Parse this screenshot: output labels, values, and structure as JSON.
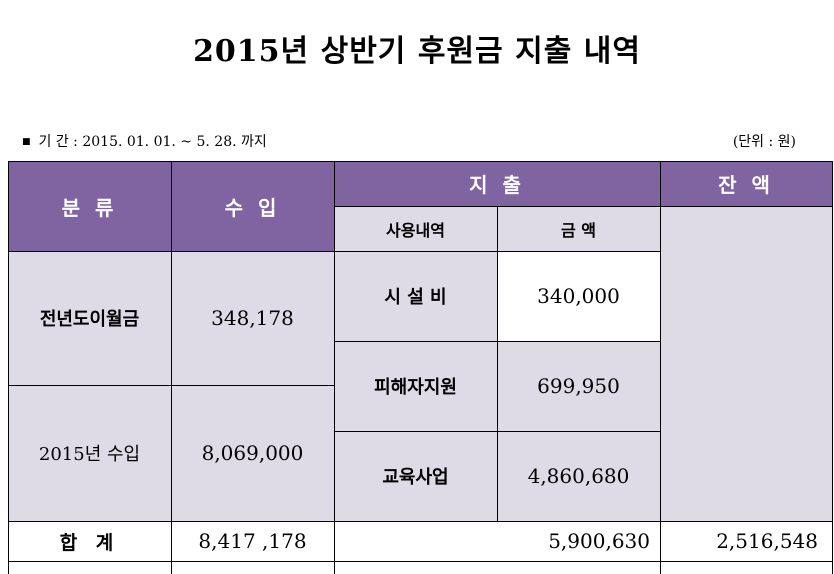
{
  "title": "2015년 상반기 후원금 지출 내역",
  "period": {
    "bullet": "■",
    "text": "기 간 : 2015. 01. 01. ~ 5. 28. 까지"
  },
  "unit": "(단위 : 원)",
  "table": {
    "headers": {
      "category": "분 류",
      "income": "수 입",
      "expense": "지 출",
      "balance": "잔 액"
    },
    "subheaders": {
      "usage": "사용내역",
      "amount": "금 액"
    },
    "income_rows": [
      {
        "category": "전년도이월금",
        "income": "348,178"
      },
      {
        "category": "2015년 수입",
        "income": "8,069,000"
      }
    ],
    "expense_rows": [
      {
        "usage": "시 설 비",
        "amount": "340,000"
      },
      {
        "usage": "피해자지원",
        "amount": "699,950"
      },
      {
        "usage": "교육사업",
        "amount": "4,860,680"
      }
    ],
    "total": {
      "label": "합 계",
      "income": "8,417 ,178",
      "expense": "5,900,630",
      "balance": "2,516,548"
    }
  }
}
